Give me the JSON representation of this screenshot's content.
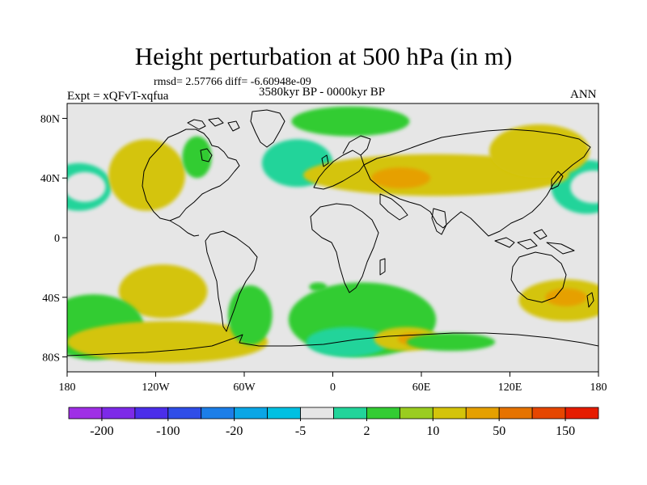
{
  "header": {
    "title": "Height perturbation at 500 hPa (in m)",
    "stats": "rmsd= 2.57766 diff= -6.60948e-09",
    "experiment": "Expt = xQFvT-xqfua",
    "period": "3580kyr BP - 0000kyr BP",
    "season": "ANN"
  },
  "map": {
    "projection": "cylindrical-equidistant",
    "lon_range": [
      -180,
      180
    ],
    "lat_range": [
      -90,
      90
    ],
    "y_axis_labels": [
      {
        "lat": 80,
        "label": "80N"
      },
      {
        "lat": 40,
        "label": "40N"
      },
      {
        "lat": 0,
        "label": "0"
      },
      {
        "lat": -40,
        "label": "40S"
      },
      {
        "lat": -80,
        "label": "80S"
      }
    ],
    "x_axis_labels": [
      {
        "lon": -180,
        "label": "180"
      },
      {
        "lon": -120,
        "label": "120W"
      },
      {
        "lon": -60,
        "label": "60W"
      },
      {
        "lon": 0,
        "label": "0"
      },
      {
        "lon": 60,
        "label": "60E"
      },
      {
        "lon": 120,
        "label": "120E"
      },
      {
        "lon": 180,
        "label": "180"
      }
    ],
    "background_color": "#e6e6e6",
    "anomalies": [
      {
        "lon": -172,
        "lat": 34,
        "rx": 22,
        "ry": 16,
        "level": 8
      },
      {
        "lon": -168,
        "lat": 34,
        "rx": 14,
        "ry": 10,
        "level": 7
      },
      {
        "lon": 172,
        "lat": 34,
        "rx": 24,
        "ry": 18,
        "level": 8
      },
      {
        "lon": 177,
        "lat": 34,
        "rx": 16,
        "ry": 11,
        "level": 7
      },
      {
        "lon": -126,
        "lat": 42,
        "rx": 26,
        "ry": 24,
        "level": 11
      },
      {
        "lon": -92,
        "lat": 54,
        "rx": 10,
        "ry": 14,
        "level": 9
      },
      {
        "lon": -24,
        "lat": 50,
        "rx": 24,
        "ry": 16,
        "level": 8
      },
      {
        "lon": 12,
        "lat": 78,
        "rx": 40,
        "ry": 10,
        "level": 9
      },
      {
        "lon": 70,
        "lat": 42,
        "rx": 90,
        "ry": 14,
        "level": 11
      },
      {
        "lon": 46,
        "lat": 40,
        "rx": 20,
        "ry": 7,
        "level": 12
      },
      {
        "lon": 140,
        "lat": 58,
        "rx": 34,
        "ry": 18,
        "level": 11
      },
      {
        "lon": -115,
        "lat": -36,
        "rx": 30,
        "ry": 18,
        "level": 11
      },
      {
        "lon": -162,
        "lat": -60,
        "rx": 34,
        "ry": 22,
        "level": 9
      },
      {
        "lon": -112,
        "lat": -70,
        "rx": 68,
        "ry": 14,
        "level": 11
      },
      {
        "lon": -56,
        "lat": -52,
        "rx": 15,
        "ry": 20,
        "level": 9
      },
      {
        "lon": -10,
        "lat": -33,
        "rx": 6,
        "ry": 3,
        "level": 9
      },
      {
        "lon": 20,
        "lat": -55,
        "rx": 50,
        "ry": 25,
        "level": 9
      },
      {
        "lon": 10,
        "lat": -70,
        "rx": 28,
        "ry": 10,
        "level": 8
      },
      {
        "lon": 50,
        "lat": -68,
        "rx": 22,
        "ry": 8,
        "level": 11
      },
      {
        "lon": 54,
        "lat": -68,
        "rx": 10,
        "ry": 4,
        "level": 12
      },
      {
        "lon": 80,
        "lat": -70,
        "rx": 30,
        "ry": 6,
        "level": 9
      },
      {
        "lon": 158,
        "lat": -42,
        "rx": 32,
        "ry": 14,
        "level": 11
      },
      {
        "lon": 158,
        "lat": -40,
        "rx": 14,
        "ry": 6,
        "level": 12
      }
    ]
  },
  "colorbar": {
    "colors": [
      "#9f2fe6",
      "#7d2ae8",
      "#4b2eea",
      "#2f4de8",
      "#1c7ee8",
      "#0aa6e6",
      "#00c0e2",
      "#e6e6e6",
      "#22d49a",
      "#33cc33",
      "#9acd20",
      "#d4c40a",
      "#e6a000",
      "#e67300",
      "#e64600",
      "#e61c00"
    ],
    "labels": [
      {
        "boundary": 1,
        "label": "-200"
      },
      {
        "boundary": 3,
        "label": "-100"
      },
      {
        "boundary": 5,
        "label": "-20"
      },
      {
        "boundary": 7,
        "label": "-5"
      },
      {
        "boundary": 9,
        "label": "2"
      },
      {
        "boundary": 11,
        "label": "10"
      },
      {
        "boundary": 13,
        "label": "50"
      },
      {
        "boundary": 15,
        "label": "150"
      }
    ]
  }
}
